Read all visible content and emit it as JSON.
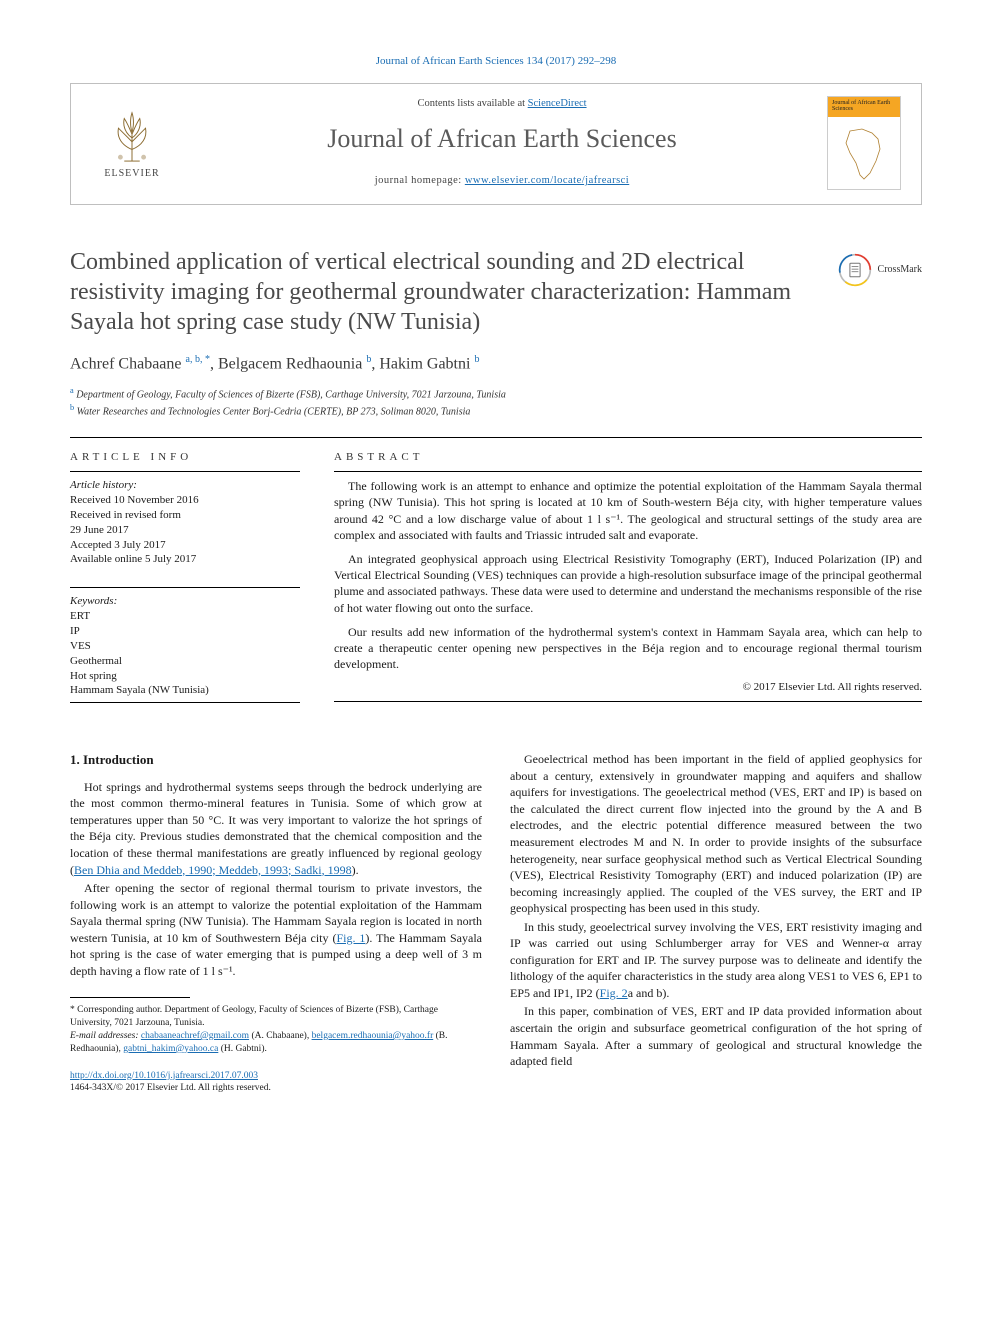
{
  "citation_line": "Journal of African Earth Sciences 134 (2017) 292–298",
  "header": {
    "contents_prefix": "Contents lists available at ",
    "contents_link": "ScienceDirect",
    "journal_name": "Journal of African Earth Sciences",
    "homepage_prefix": "journal homepage: ",
    "homepage_url": "www.elsevier.com/locate/jafrearsci",
    "publisher_name": "ELSEVIER",
    "cover_title": "Journal of African Earth Sciences"
  },
  "crossmark_label": "CrossMark",
  "title": "Combined application of vertical electrical sounding and 2D electrical resistivity imaging for geothermal groundwater characterization: Hammam Sayala hot spring case study (NW Tunisia)",
  "authors_html": "Achref Chabaane <sup>a, b, *</sup>, Belgacem Redhaounia <sup>b</sup>, Hakim Gabtni <sup>b</sup>",
  "affiliations": [
    {
      "sup": "a",
      "text": "Department of Geology, Faculty of Sciences of Bizerte (FSB), Carthage University, 7021 Jarzouna, Tunisia"
    },
    {
      "sup": "b",
      "text": "Water Researches and Technologies Center Borj-Cedria (CERTE), BP 273, Soliman 8020, Tunisia"
    }
  ],
  "article_info_label": "ARTICLE INFO",
  "abstract_label": "ABSTRACT",
  "history": {
    "label": "Article history:",
    "lines": [
      "Received 10 November 2016",
      "Received in revised form",
      "29 June 2017",
      "Accepted 3 July 2017",
      "Available online 5 July 2017"
    ]
  },
  "keywords": {
    "label": "Keywords:",
    "items": [
      "ERT",
      "IP",
      "VES",
      "Geothermal",
      "Hot spring",
      "Hammam Sayala (NW Tunisia)"
    ]
  },
  "abstract_paragraphs": [
    "The following work is an attempt to enhance and optimize the potential exploitation of the Hammam Sayala thermal spring (NW Tunisia). This hot spring is located at 10 km of South-western Béja city, with higher temperature values around 42 °C and a low discharge value of about 1 l s⁻¹. The geological and structural settings of the study area are complex and associated with faults and Triassic intruded salt and evaporate.",
    "An integrated geophysical approach using Electrical Resistivity Tomography (ERT), Induced Polarization (IP) and Vertical Electrical Sounding (VES) techniques can provide a high-resolution subsurface image of the principal geothermal plume and associated pathways. These data were used to determine and understand the mechanisms responsible of the rise of hot water flowing out onto the surface.",
    "Our results add new information of the hydrothermal system's context in Hammam Sayala area, which can help to create a therapeutic center opening new perspectives in the Béja region and to encourage regional thermal tourism development."
  ],
  "copyright": "© 2017 Elsevier Ltd. All rights reserved.",
  "intro_heading": "1. Introduction",
  "intro_paragraphs_left": [
    "Hot springs and hydrothermal systems seeps through the bedrock underlying are the most common thermo-mineral features in Tunisia. Some of which grow at temperatures upper than 50 °C. It was very important to valorize the hot springs of the Béja city. Previous studies demonstrated that the chemical composition and the location of these thermal manifestations are greatly influenced by regional geology (",
    "After opening the sector of regional thermal tourism to private investors, the following work is an attempt to valorize the potential exploitation of the Hammam Sayala thermal spring (NW Tunisia). The Hammam Sayala region is located in north western Tunisia, at 10 km of Southwestern Béja city (",
    "). The Hammam Sayala hot spring is the case of water emerging that is pumped using a deep well of 3 m depth having a flow rate of 1 l s⁻¹."
  ],
  "ref1": "Ben Dhia and Meddeb, 1990; Meddeb, 1993; Sadki, 1998",
  "fig1": "Fig. 1",
  "intro_paragraphs_right": [
    "Geoelectrical method has been important in the field of applied geophysics for about a century, extensively in groundwater mapping and aquifers and shallow aquifers for investigations. The geoelectrical method (VES, ERT and IP) is based on the calculated the direct current flow injected into the ground by the A and B electrodes, and the electric potential difference measured between the two measurement electrodes M and N. In order to provide insights of the subsurface heterogeneity, near surface geophysical method such as Vertical Electrical Sounding (VES), Electrical Resistivity Tomography (ERT) and induced polarization (IP) are becoming increasingly applied. The coupled of the VES survey, the ERT and IP geophysical prospecting has been used in this study.",
    "In this study, geoelectrical survey involving the VES, ERT resistivity imaging and IP was carried out using Schlumberger array for VES and Wenner-α array configuration for ERT and IP. The survey purpose was to delineate and identify the lithology of the aquifer characteristics in the study area along VES1 to VES 6, EP1 to EP5 and IP1, IP2 (",
    "In this paper, combination of VES, ERT and IP data provided information about ascertain the origin and subsurface geometrical configuration of the hot spring of Hammam Sayala. After a summary of geological and structural knowledge the adapted field"
  ],
  "fig2": "Fig. 2",
  "fig2_suffix": "a and b).",
  "corresponding": {
    "star": "*",
    "text": "Corresponding author. Department of Geology, Faculty of Sciences of Bizerte (FSB), Carthage University, 7021 Jarzouna, Tunisia.",
    "email_label": "E-mail addresses:",
    "emails": [
      {
        "addr": "chabaaneachref@gmail.com",
        "who": "(A. Chabaane)"
      },
      {
        "addr": "belgacem.redhaounia@yahoo.fr",
        "who": "(B. Redhaounia)"
      },
      {
        "addr": "gabtni_hakim@yahoo.ca",
        "who": "(H. Gabtni)"
      }
    ]
  },
  "footer": {
    "doi": "http://dx.doi.org/10.1016/j.jafrearsci.2017.07.003",
    "issn_line": "1464-343X/© 2017 Elsevier Ltd. All rights reserved."
  },
  "colors": {
    "link": "#1a6db3",
    "heading_gray": "#4a4a4a",
    "border": "#bfbfbf",
    "crossmark_ring": "#e43c2f",
    "crossmark_blue": "#1a6db3",
    "crossmark_yellow": "#f5c518",
    "cover_accent": "#f5a623"
  }
}
